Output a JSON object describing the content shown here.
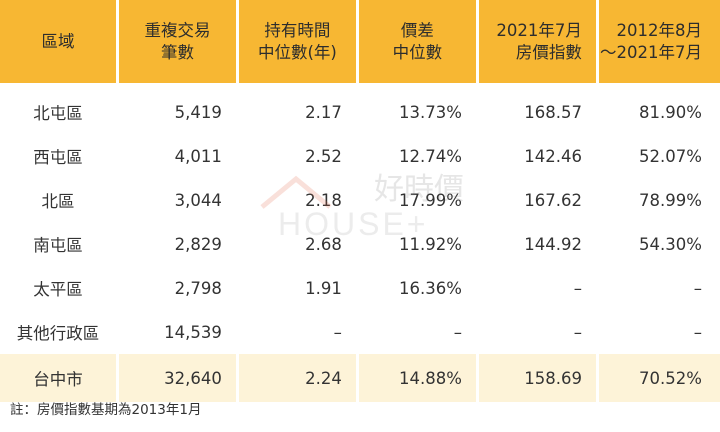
{
  "table": {
    "headers": [
      [
        "區域"
      ],
      [
        "重複交易",
        "筆數"
      ],
      [
        "持有時間",
        "中位數(年)"
      ],
      [
        "價差",
        "中位數"
      ],
      [
        "2021年7月",
        "房價指數"
      ],
      [
        "2012年8月",
        "～2021年7月"
      ]
    ],
    "rows": [
      [
        "北屯區",
        "5,419",
        "2.17",
        "13.73%",
        "168.57",
        "81.90%"
      ],
      [
        "西屯區",
        "4,011",
        "2.52",
        "12.74%",
        "142.46",
        "52.07%"
      ],
      [
        "北區",
        "3,044",
        "2.18",
        "17.99%",
        "167.62",
        "78.99%"
      ],
      [
        "南屯區",
        "2,829",
        "2.68",
        "11.92%",
        "144.92",
        "54.30%"
      ],
      [
        "太平區",
        "2,798",
        "1.91",
        "16.36%",
        "–",
        "–"
      ],
      [
        "其他行政區",
        "14,539",
        "–",
        "–",
        "–",
        "–"
      ]
    ],
    "total": [
      "台中市",
      "32,640",
      "2.24",
      "14.88%",
      "158.69",
      "70.52%"
    ]
  },
  "note": "註：房價指數基期為2013年1月",
  "watermark": {
    "cn": "好時價",
    "en": "HOUSE+"
  },
  "colors": {
    "header": "#f7b733",
    "total_row": "#fdf3d8",
    "watermark": "#e05a3a"
  }
}
